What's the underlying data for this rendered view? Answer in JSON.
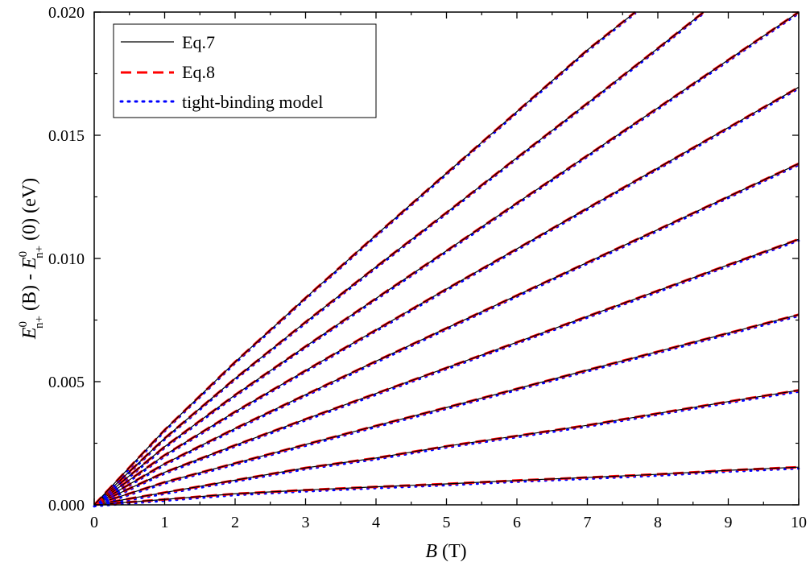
{
  "chart_data": {
    "type": "line",
    "xlabel_italic": "B",
    "xlabel_unit": " (T)",
    "ylabel": {
      "e1": "E",
      "sup1": "0",
      "sub1": "n+",
      "mid": " (B) - ",
      "e2": "E",
      "sup2": "0",
      "sub2": "n+",
      "tail": " (0) (eV)"
    },
    "xlim": [
      0,
      10
    ],
    "ylim": [
      0,
      0.02
    ],
    "x_ticks": [
      0,
      1,
      2,
      3,
      4,
      5,
      6,
      7,
      8,
      9,
      10
    ],
    "x_tick_labels": [
      "0",
      "1",
      "2",
      "3",
      "4",
      "5",
      "6",
      "7",
      "8",
      "9",
      "10"
    ],
    "y_ticks": [
      0,
      0.005,
      0.01,
      0.015,
      0.02
    ],
    "y_tick_labels": [
      "0.000",
      "0.005",
      "0.010",
      "0.015",
      "0.020"
    ],
    "grid": false,
    "legend_position": "top-left",
    "legend": [
      {
        "label": "Eq.7",
        "color": "#000000",
        "style": "solid"
      },
      {
        "label": "Eq.8",
        "color": "#ff0000",
        "style": "dashed"
      },
      {
        "label": "tight-binding model",
        "color": "#0000ff",
        "style": "dotted"
      }
    ],
    "series": [
      {
        "values_at_x10": 0.00153
      },
      {
        "values_at_x10": 0.00465
      },
      {
        "values_at_x10": 0.00772
      },
      {
        "values_at_x10": 0.01078
      },
      {
        "values_at_x10": 0.01385
      },
      {
        "values_at_x10": 0.01695
      },
      {
        "values_at_x10": 0.02
      },
      {
        "x_at_top": 8.65
      },
      {
        "x_at_top": 7.68
      }
    ],
    "curves": [
      {
        "x": [
          0,
          1,
          2,
          3,
          4,
          5,
          6,
          7,
          8,
          9,
          10
        ],
        "y": [
          0,
          0.00022,
          0.00045,
          0.0006,
          0.00073,
          0.00085,
          0.00099,
          0.00111,
          0.00124,
          0.0014,
          0.00153
        ]
      },
      {
        "x": [
          0,
          1,
          2,
          3,
          4,
          5,
          6,
          7,
          8,
          9,
          10
        ],
        "y": [
          0,
          0.0005,
          0.001,
          0.0015,
          0.0019,
          0.00238,
          0.0028,
          0.00323,
          0.00371,
          0.00419,
          0.00465
        ]
      },
      {
        "x": [
          0,
          1,
          2,
          3,
          4,
          5,
          6,
          7,
          8,
          9,
          10
        ],
        "y": [
          0,
          0.00092,
          0.00169,
          0.00245,
          0.00321,
          0.00395,
          0.00471,
          0.00547,
          0.00622,
          0.00697,
          0.00772
        ]
      },
      {
        "x": [
          0,
          1,
          2,
          3,
          4,
          5,
          6,
          7,
          8,
          9,
          10
        ],
        "y": [
          0,
          0.00132,
          0.00242,
          0.00348,
          0.00452,
          0.00556,
          0.0066,
          0.00765,
          0.00869,
          0.00974,
          0.01078
        ]
      },
      {
        "x": [
          0,
          1,
          2,
          3,
          4,
          5,
          6,
          7,
          8,
          9,
          10
        ],
        "y": [
          0,
          0.00167,
          0.0031,
          0.00447,
          0.00583,
          0.00717,
          0.0085,
          0.00984,
          0.01117,
          0.01251,
          0.01385
        ]
      },
      {
        "x": [
          0,
          1,
          2,
          3,
          4,
          5,
          6,
          7,
          8,
          9,
          10
        ],
        "y": [
          0,
          0.00202,
          0.00378,
          0.00545,
          0.0071,
          0.00876,
          0.01039,
          0.01204,
          0.01367,
          0.01531,
          0.01695
        ]
      },
      {
        "x": [
          0,
          1,
          2,
          3,
          4,
          5,
          6,
          7,
          8,
          9,
          10
        ],
        "y": [
          0,
          0.00236,
          0.00446,
          0.00643,
          0.00838,
          0.01031,
          0.01225,
          0.01418,
          0.01611,
          0.01806,
          0.02
        ]
      },
      {
        "x": [
          0,
          1,
          2,
          3,
          4,
          5,
          6,
          7,
          8,
          8.65
        ],
        "y": [
          0,
          0.0027,
          0.00513,
          0.00742,
          0.00966,
          0.01186,
          0.01409,
          0.0163,
          0.01853,
          0.02
        ]
      },
      {
        "x": [
          0,
          1,
          2,
          3,
          4,
          5,
          6,
          7,
          7.68
        ],
        "y": [
          0,
          0.00304,
          0.0058,
          0.0084,
          0.01095,
          0.01346,
          0.01596,
          0.01846,
          0.02
        ]
      }
    ]
  }
}
